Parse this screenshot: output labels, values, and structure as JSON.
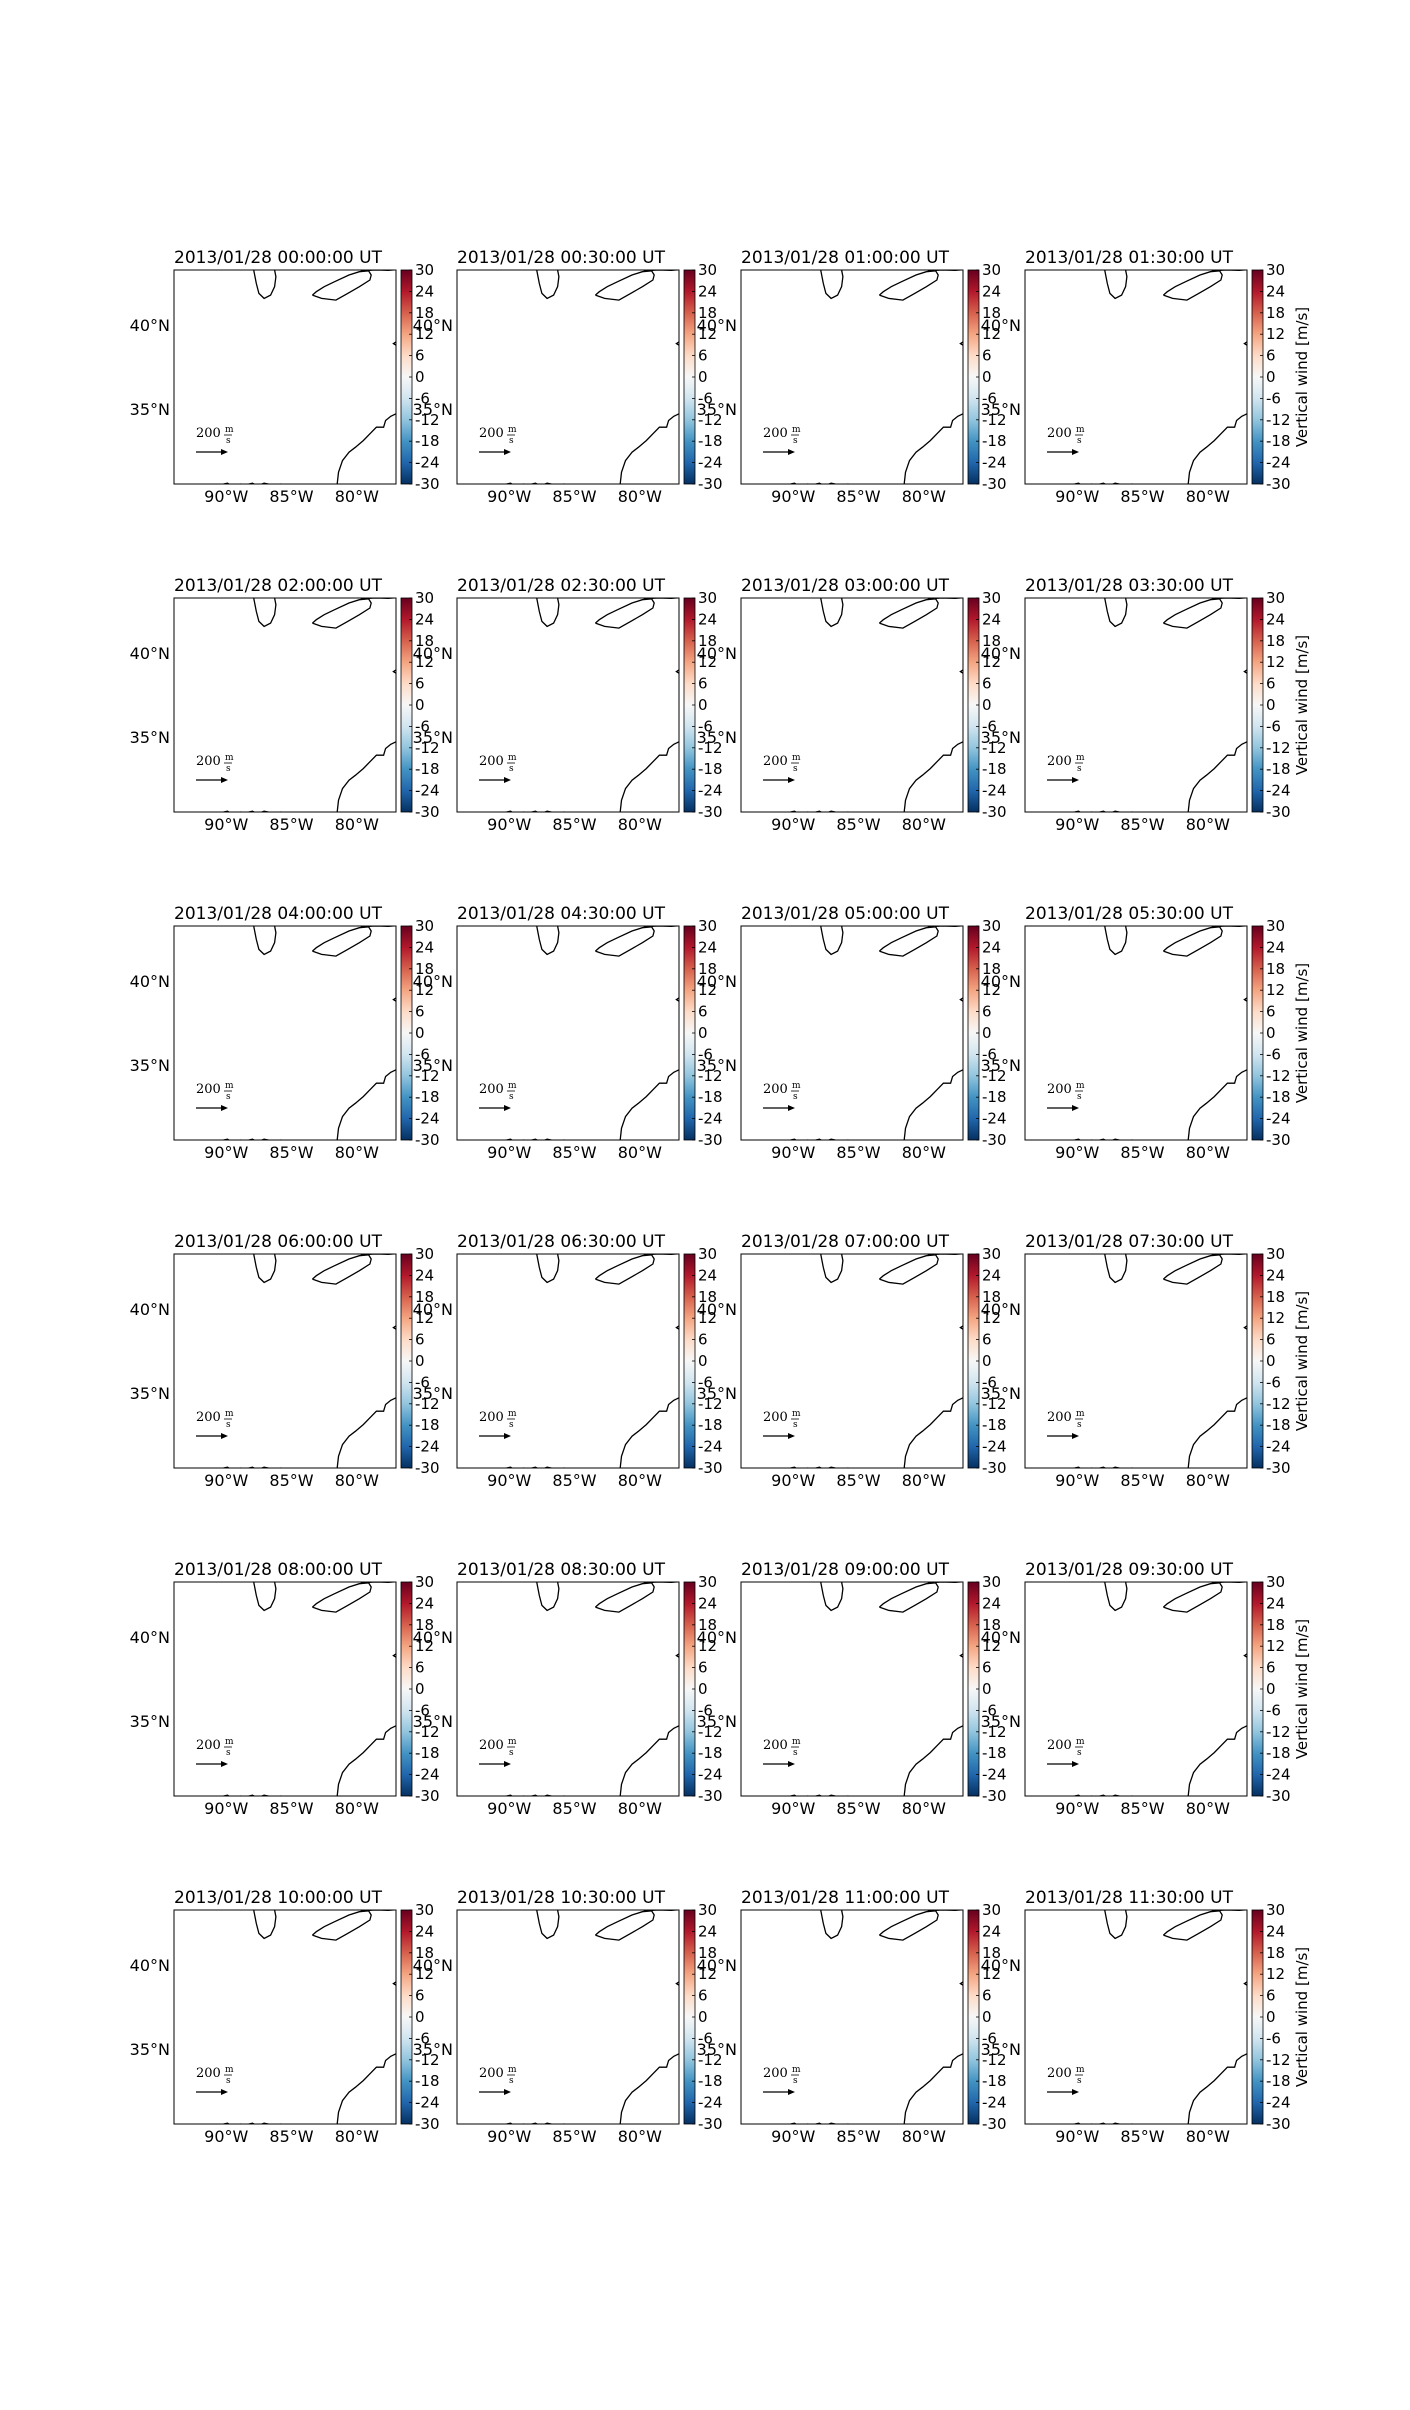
{
  "chart_data": {
    "type": "map-panels",
    "layout": {
      "rows": 6,
      "cols": 4
    },
    "panel_titles": [
      "2013/01/28 00:00:00 UT",
      "2013/01/28 00:30:00 UT",
      "2013/01/28 01:00:00 UT",
      "2013/01/28 01:30:00 UT",
      "2013/01/28 02:00:00 UT",
      "2013/01/28 02:30:00 UT",
      "2013/01/28 03:00:00 UT",
      "2013/01/28 03:30:00 UT",
      "2013/01/28 04:00:00 UT",
      "2013/01/28 04:30:00 UT",
      "2013/01/28 05:00:00 UT",
      "2013/01/28 05:30:00 UT",
      "2013/01/28 06:00:00 UT",
      "2013/01/28 06:30:00 UT",
      "2013/01/28 07:00:00 UT",
      "2013/01/28 07:30:00 UT",
      "2013/01/28 08:00:00 UT",
      "2013/01/28 08:30:00 UT",
      "2013/01/28 09:00:00 UT",
      "2013/01/28 09:30:00 UT",
      "2013/01/28 10:00:00 UT",
      "2013/01/28 10:30:00 UT",
      "2013/01/28 11:00:00 UT",
      "2013/01/28 11:30:00 UT"
    ],
    "x_ticks": [
      {
        "label": "90°W",
        "value": -90
      },
      {
        "label": "85°W",
        "value": -85
      },
      {
        "label": "80°W",
        "value": -80
      }
    ],
    "y_ticks": [
      {
        "label": "40°N",
        "value": 40
      },
      {
        "label": "35°N",
        "value": 35
      }
    ],
    "lon_range": [
      -94,
      -77
    ],
    "lat_range": [
      30.5,
      43.3
    ],
    "colorbar": {
      "label": "Vertical wind [m/s]",
      "ticks": [
        30,
        24,
        18,
        12,
        6,
        0,
        -6,
        -12,
        -18,
        -24,
        -30
      ],
      "range": [
        -30,
        30
      ],
      "colors": [
        "#053061",
        "#2166ac",
        "#4393c3",
        "#92c5de",
        "#d1e5f0",
        "#f7f7f7",
        "#fddbc7",
        "#f4a582",
        "#d6604d",
        "#b2182b",
        "#67001f"
      ]
    },
    "reference_vector": {
      "value": "200",
      "unit_num": "m",
      "unit_den": "s"
    },
    "grid": false
  }
}
